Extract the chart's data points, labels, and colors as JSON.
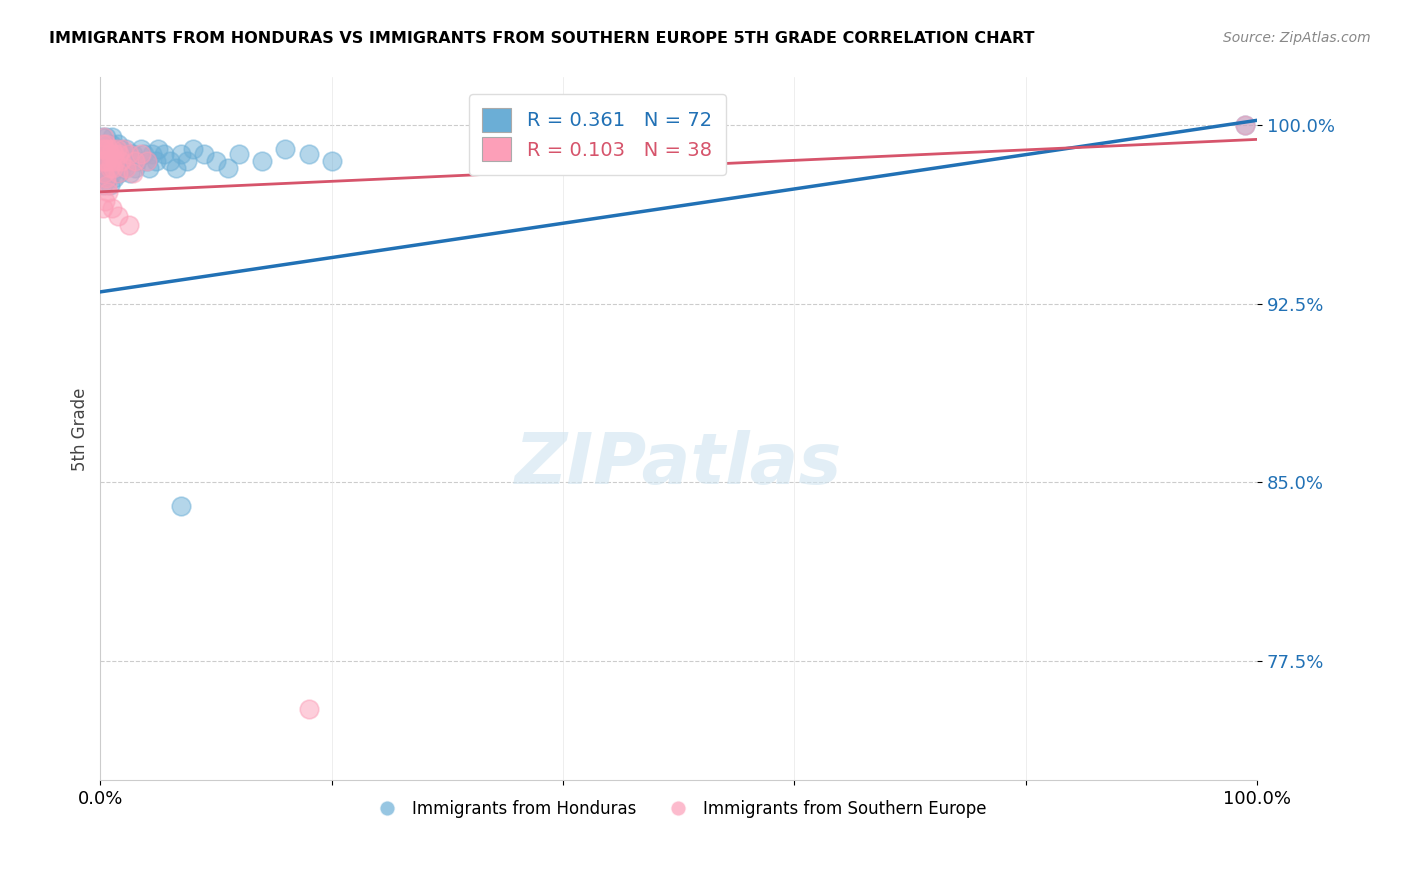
{
  "title": "IMMIGRANTS FROM HONDURAS VS IMMIGRANTS FROM SOUTHERN EUROPE 5TH GRADE CORRELATION CHART",
  "source_text": "Source: ZipAtlas.com",
  "ylabel": "5th Grade",
  "xlim": [
    0.0,
    1.0
  ],
  "ylim": [
    0.725,
    1.02
  ],
  "ytick_labels": [
    "77.5%",
    "85.0%",
    "92.5%",
    "100.0%"
  ],
  "ytick_positions": [
    0.775,
    0.85,
    0.925,
    1.0
  ],
  "r_honduras": 0.361,
  "n_honduras": 72,
  "r_southern_europe": 0.103,
  "n_southern_europe": 38,
  "blue_color": "#6baed6",
  "blue_line_color": "#2171b5",
  "pink_color": "#fc9fb8",
  "pink_line_color": "#d6546b",
  "legend_label_blue": "Immigrants from Honduras",
  "legend_label_pink": "Immigrants from Southern Europe",
  "blue_line_x0": 0.0,
  "blue_line_y0": 0.93,
  "blue_line_x1": 1.0,
  "blue_line_y1": 1.002,
  "pink_line_x0": 0.0,
  "pink_line_y0": 0.972,
  "pink_line_x1": 1.0,
  "pink_line_y1": 0.994,
  "honduras_x": [
    0.001,
    0.001,
    0.002,
    0.002,
    0.002,
    0.003,
    0.003,
    0.003,
    0.004,
    0.004,
    0.004,
    0.005,
    0.005,
    0.005,
    0.006,
    0.006,
    0.006,
    0.007,
    0.007,
    0.008,
    0.008,
    0.008,
    0.009,
    0.009,
    0.01,
    0.01,
    0.01,
    0.011,
    0.012,
    0.012,
    0.013,
    0.013,
    0.014,
    0.015,
    0.015,
    0.016,
    0.016,
    0.017,
    0.018,
    0.019,
    0.02,
    0.021,
    0.022,
    0.024,
    0.025,
    0.026,
    0.028,
    0.03,
    0.032,
    0.035,
    0.038,
    0.04,
    0.042,
    0.045,
    0.048,
    0.05,
    0.055,
    0.06,
    0.065,
    0.07,
    0.075,
    0.08,
    0.09,
    0.1,
    0.11,
    0.12,
    0.14,
    0.16,
    0.18,
    0.2,
    0.07,
    0.99
  ],
  "honduras_y": [
    0.99,
    0.995,
    0.985,
    0.99,
    0.975,
    0.988,
    0.992,
    0.978,
    0.985,
    0.99,
    0.98,
    0.983,
    0.99,
    0.995,
    0.98,
    0.985,
    0.99,
    0.988,
    0.978,
    0.982,
    0.99,
    0.975,
    0.985,
    0.992,
    0.98,
    0.988,
    0.995,
    0.982,
    0.985,
    0.978,
    0.982,
    0.99,
    0.985,
    0.988,
    0.992,
    0.98,
    0.985,
    0.99,
    0.982,
    0.988,
    0.985,
    0.982,
    0.99,
    0.988,
    0.985,
    0.98,
    0.988,
    0.982,
    0.985,
    0.99,
    0.988,
    0.985,
    0.982,
    0.988,
    0.985,
    0.99,
    0.988,
    0.985,
    0.982,
    0.988,
    0.985,
    0.99,
    0.988,
    0.985,
    0.982,
    0.988,
    0.985,
    0.99,
    0.988,
    0.985,
    0.84,
    1.0
  ],
  "southern_europe_x": [
    0.001,
    0.002,
    0.002,
    0.003,
    0.003,
    0.004,
    0.004,
    0.005,
    0.005,
    0.006,
    0.006,
    0.007,
    0.008,
    0.008,
    0.009,
    0.01,
    0.011,
    0.012,
    0.013,
    0.014,
    0.015,
    0.016,
    0.018,
    0.02,
    0.022,
    0.025,
    0.028,
    0.03,
    0.035,
    0.04,
    0.002,
    0.004,
    0.007,
    0.01,
    0.015,
    0.025,
    0.18,
    0.99
  ],
  "southern_europe_y": [
    0.99,
    0.985,
    0.992,
    0.98,
    0.995,
    0.985,
    0.99,
    0.978,
    0.992,
    0.985,
    0.975,
    0.99,
    0.982,
    0.988,
    0.985,
    0.99,
    0.982,
    0.988,
    0.985,
    0.99,
    0.98,
    0.988,
    0.985,
    0.99,
    0.982,
    0.988,
    0.98,
    0.985,
    0.988,
    0.985,
    0.965,
    0.968,
    0.972,
    0.965,
    0.962,
    0.958,
    0.755,
    1.0
  ]
}
